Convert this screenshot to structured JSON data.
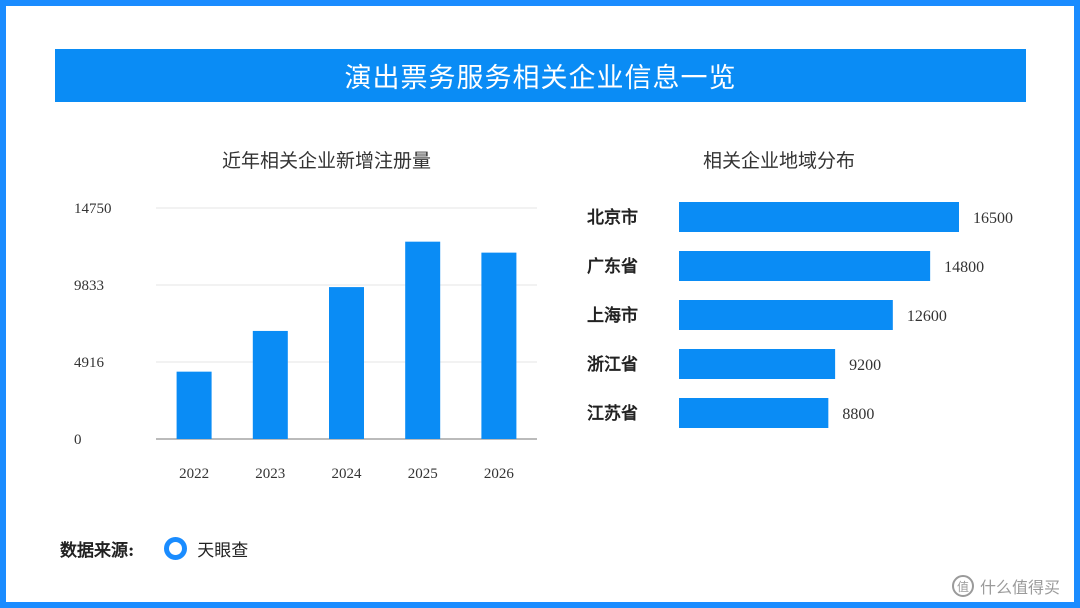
{
  "title": "演出票务服务相关企业信息一览",
  "chart_data": [
    {
      "type": "bar",
      "title": "近年相关企业新增注册量",
      "categories": [
        "2022",
        "2023",
        "2024",
        "2025",
        "2026"
      ],
      "values": [
        4300,
        6900,
        9700,
        12600,
        11900
      ],
      "yticks": [
        "0",
        "4916",
        "9833",
        "14750"
      ],
      "ylim": [
        0,
        14750
      ],
      "grid": true,
      "color": "#0a8cf5"
    },
    {
      "type": "bar",
      "orientation": "horizontal",
      "title": "相关企业地域分布",
      "categories": [
        "北京市",
        "广东省",
        "上海市",
        "浙江省",
        "江苏省"
      ],
      "values": [
        16500,
        14800,
        12600,
        9200,
        8800
      ],
      "labels": [
        "16500",
        "14800",
        "12600",
        "9200",
        "8800"
      ],
      "color": "#0a8cf5"
    }
  ],
  "source": {
    "label": "数据来源:",
    "name": "天眼查"
  },
  "watermark": {
    "icon_text": "值",
    "text": "什么值得买"
  },
  "colors": {
    "frame": "#1a8cff",
    "banner": "#0a8cf5",
    "bar": "#0a8cf5"
  }
}
